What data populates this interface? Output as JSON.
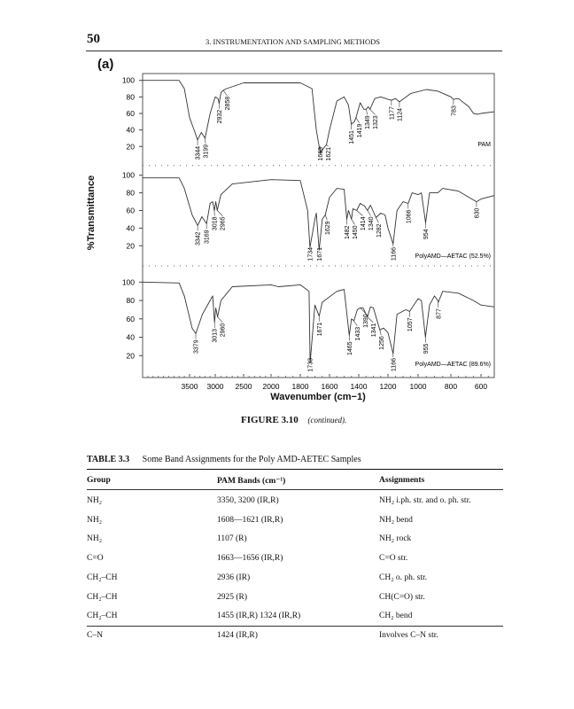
{
  "header": {
    "page_number": "50",
    "running_title": "3. INSTRUMENTATION AND SAMPLING METHODS"
  },
  "figure": {
    "panel_label": "(a)",
    "caption_label": "FIGURE 3.10",
    "caption_text": "(continued).",
    "chart_data": {
      "type": "line",
      "ylabel": "%Transmittance",
      "xlabel": "Wavenumber (cm−1)",
      "x_ticks": [
        3500,
        3000,
        2500,
        2000,
        1800,
        1600,
        1400,
        1200,
        1000,
        800,
        600
      ],
      "y_ticks": [
        20,
        40,
        60,
        80,
        100
      ],
      "xlim": [
        4400,
        510
      ],
      "x_reversed": true,
      "x_scale": "piecewise, expanded below 2000",
      "grid": false,
      "panels": [
        {
          "name": "PAM",
          "points": [
            [
              4400,
              100
            ],
            [
              3700,
              100
            ],
            [
              3600,
              90
            ],
            [
              3500,
              55
            ],
            [
              3400,
              38
            ],
            [
              3344,
              28
            ],
            [
              3270,
              37
            ],
            [
              3199,
              30
            ],
            [
              3100,
              60
            ],
            [
              3000,
              80
            ],
            [
              2950,
              78
            ],
            [
              2932,
              72
            ],
            [
              2900,
              85
            ],
            [
              2858,
              88
            ],
            [
              2800,
              90
            ],
            [
              2500,
              97
            ],
            [
              2000,
              97
            ],
            [
              1800,
              97
            ],
            [
              1720,
              90
            ],
            [
              1690,
              40
            ],
            [
              1663,
              12
            ],
            [
              1640,
              18
            ],
            [
              1621,
              22
            ],
            [
              1600,
              40
            ],
            [
              1550,
              75
            ],
            [
              1500,
              80
            ],
            [
              1470,
              70
            ],
            [
              1451,
              47
            ],
            [
              1430,
              50
            ],
            [
              1419,
              55
            ],
            [
              1390,
              73
            ],
            [
              1365,
              65
            ],
            [
              1349,
              65
            ],
            [
              1335,
              68
            ],
            [
              1323,
              65
            ],
            [
              1290,
              78
            ],
            [
              1250,
              80
            ],
            [
              1200,
              77
            ],
            [
              1177,
              76
            ],
            [
              1150,
              78
            ],
            [
              1124,
              74
            ],
            [
              1050,
              84
            ],
            [
              950,
              89
            ],
            [
              880,
              87
            ],
            [
              800,
              80
            ],
            [
              783,
              77
            ],
            [
              750,
              78
            ],
            [
              680,
              68
            ],
            [
              650,
              60
            ],
            [
              620,
              59
            ],
            [
              600,
              60
            ],
            [
              510,
              62
            ]
          ],
          "peaks": [
            [
              3344,
              28
            ],
            [
              3199,
              30
            ],
            [
              2932,
              72
            ],
            [
              2858,
              88
            ],
            [
              1663,
              12
            ],
            [
              1621,
              22
            ],
            [
              1451,
              47
            ],
            [
              1419,
              55
            ],
            [
              1349,
              65
            ],
            [
              1323,
              65
            ],
            [
              1177,
              76
            ],
            [
              1124,
              74
            ],
            [
              783,
              77
            ]
          ]
        },
        {
          "name": "PolyAMD—AETAC (52.5%)",
          "points": [
            [
              4400,
              97
            ],
            [
              3700,
              97
            ],
            [
              3600,
              85
            ],
            [
              3450,
              55
            ],
            [
              3342,
              43
            ],
            [
              3260,
              53
            ],
            [
              3169,
              45
            ],
            [
              3100,
              68
            ],
            [
              3050,
              70
            ],
            [
              3018,
              60
            ],
            [
              2990,
              70
            ],
            [
              2965,
              60
            ],
            [
              2900,
              78
            ],
            [
              2700,
              90
            ],
            [
              2000,
              95
            ],
            [
              1800,
              94
            ],
            [
              1750,
              60
            ],
            [
              1734,
              18
            ],
            [
              1700,
              50
            ],
            [
              1690,
              57
            ],
            [
              1671,
              15
            ],
            [
              1650,
              50
            ],
            [
              1629,
              55
            ],
            [
              1600,
              75
            ],
            [
              1550,
              85
            ],
            [
              1500,
              84
            ],
            [
              1482,
              50
            ],
            [
              1470,
              60
            ],
            [
              1450,
              50
            ],
            [
              1440,
              62
            ],
            [
              1414,
              60
            ],
            [
              1390,
              68
            ],
            [
              1360,
              65
            ],
            [
              1340,
              60
            ],
            [
              1320,
              66
            ],
            [
              1282,
              52
            ],
            [
              1250,
              57
            ],
            [
              1220,
              55
            ],
            [
              1200,
              40
            ],
            [
              1166,
              22
            ],
            [
              1140,
              60
            ],
            [
              1100,
              70
            ],
            [
              1066,
              68
            ],
            [
              1040,
              80
            ],
            [
              1000,
              78
            ],
            [
              980,
              80
            ],
            [
              954,
              46
            ],
            [
              930,
              80
            ],
            [
              880,
              80
            ],
            [
              850,
              85
            ],
            [
              750,
              82
            ],
            [
              680,
              75
            ],
            [
              630,
              70
            ],
            [
              600,
              73
            ],
            [
              510,
              77
            ]
          ],
          "peaks": [
            [
              3342,
              43
            ],
            [
              3169,
              45
            ],
            [
              3018,
              60
            ],
            [
              2965,
              60
            ],
            [
              1734,
              18
            ],
            [
              1671,
              15
            ],
            [
              1629,
              55
            ],
            [
              1482,
              50
            ],
            [
              1450,
              50
            ],
            [
              1414,
              60
            ],
            [
              1340,
              60
            ],
            [
              1282,
              52
            ],
            [
              1166,
              22
            ],
            [
              1066,
              68
            ],
            [
              954,
              46
            ],
            [
              630,
              70
            ]
          ]
        },
        {
          "name": "PolyAMD—AETAC (89.6%)",
          "points": [
            [
              4400,
              100
            ],
            [
              3700,
              99
            ],
            [
              3600,
              85
            ],
            [
              3450,
              50
            ],
            [
              3379,
              44
            ],
            [
              3250,
              65
            ],
            [
              3050,
              85
            ],
            [
              3013,
              56
            ],
            [
              2990,
              72
            ],
            [
              2960,
              62
            ],
            [
              2900,
              80
            ],
            [
              2700,
              95
            ],
            [
              2000,
              97
            ],
            [
              1950,
              95
            ],
            [
              1800,
              97
            ],
            [
              1740,
              90
            ],
            [
              1733,
              12
            ],
            [
              1700,
              75
            ],
            [
              1671,
              63
            ],
            [
              1650,
              78
            ],
            [
              1550,
              90
            ],
            [
              1500,
              92
            ],
            [
              1465,
              42
            ],
            [
              1450,
              60
            ],
            [
              1433,
              58
            ],
            [
              1410,
              70
            ],
            [
              1390,
              72
            ],
            [
              1370,
              72
            ],
            [
              1341,
              62
            ],
            [
              1320,
              73
            ],
            [
              1300,
              72
            ],
            [
              1256,
              48
            ],
            [
              1230,
              50
            ],
            [
              1200,
              45
            ],
            [
              1166,
              22
            ],
            [
              1140,
              65
            ],
            [
              1080,
              70
            ],
            [
              1057,
              68
            ],
            [
              1000,
              82
            ],
            [
              980,
              80
            ],
            [
              955,
              40
            ],
            [
              930,
              75
            ],
            [
              900,
              85
            ],
            [
              880,
              80
            ],
            [
              877,
              78
            ],
            [
              850,
              90
            ],
            [
              750,
              88
            ],
            [
              650,
              80
            ],
            [
              600,
              75
            ],
            [
              510,
              73
            ]
          ],
          "peaks": [
            [
              3379,
              44
            ],
            [
              3013,
              56
            ],
            [
              2960,
              62
            ],
            [
              1733,
              12
            ],
            [
              1671,
              63
            ],
            [
              1465,
              42
            ],
            [
              1433,
              58
            ],
            [
              1390,
              72
            ],
            [
              1341,
              62
            ],
            [
              1256,
              48
            ],
            [
              1166,
              22
            ],
            [
              1057,
              68
            ],
            [
              955,
              40
            ],
            [
              877,
              78
            ]
          ]
        }
      ]
    }
  },
  "table": {
    "label": "TABLE 3.3",
    "title": "Some Band Assignments for the Poly AMD-AETEC Samples",
    "columns": [
      "Group",
      "PAM Bands (cm⁻¹)",
      "Assignments"
    ],
    "rows": [
      [
        "NH₂",
        "3350, 3200 (IR,R)",
        "NH₂ i.ph. str. and o. ph. str."
      ],
      [
        "NH₂",
        "1608—1621 (IR,R)",
        "NH₂ bend"
      ],
      [
        "NH₂",
        "1107 (R)",
        "NH₂ rock"
      ],
      [
        "C=O",
        "1663—1656 (IR,R)",
        "C=O str."
      ],
      [
        "CH₂–CH",
        "2936 (IR)",
        "CH₂ o. ph. str."
      ],
      [
        "CH₂–CH",
        "2925 (R)",
        "CH(C=O) str."
      ],
      [
        "CH₂–CH",
        "1455 (IR,R) 1324 (IR,R)",
        "CH₂ bend"
      ],
      [
        "C–N",
        "1424 (IR,R)",
        "Involves C–N str."
      ]
    ]
  }
}
